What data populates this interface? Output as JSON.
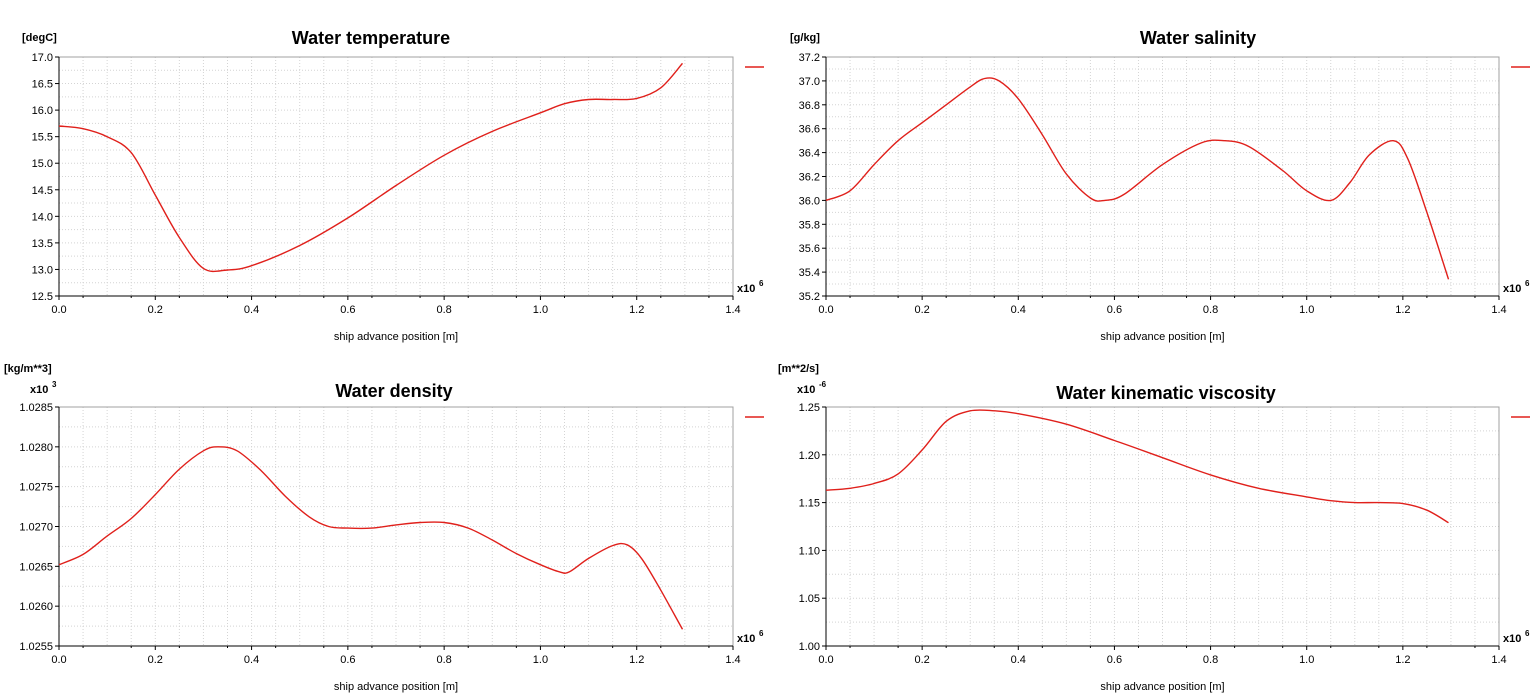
{
  "colors": {
    "series": "#e0201b",
    "grid": "#d4d4d4",
    "frame": "#a0a0a0"
  },
  "chart_data": [
    {
      "type": "line",
      "title": "Water temperature",
      "ylabel": "[degC]",
      "xlabel": "ship advance position [m]",
      "x_multiplier": "x10",
      "x_multiplier_exp": "6",
      "y_multiplier": "",
      "y_multiplier_exp": "",
      "xlim": [
        0,
        1.4
      ],
      "ylim": [
        12.5,
        17.0
      ],
      "xticks": [
        0.0,
        0.2,
        0.4,
        0.6,
        0.8,
        1.0,
        1.2,
        1.4
      ],
      "xtick_labels": [
        "0.0",
        "0.2",
        "0.4",
        "0.6",
        "0.8",
        "1.0",
        "1.2",
        "1.4"
      ],
      "yticks": [
        12.5,
        13.0,
        13.5,
        14.0,
        14.5,
        15.0,
        15.5,
        16.0,
        16.5,
        17.0
      ],
      "ytick_labels": [
        "12.5",
        "13.0",
        "13.5",
        "14.0",
        "14.5",
        "15.0",
        "15.5",
        "16.0",
        "16.5",
        "17.0"
      ],
      "legend": "top-right",
      "grid": true,
      "series": [
        {
          "x": [
            0.0,
            0.05,
            0.1,
            0.15,
            0.2,
            0.25,
            0.3,
            0.35,
            0.4,
            0.5,
            0.6,
            0.7,
            0.8,
            0.9,
            1.0,
            1.05,
            1.1,
            1.15,
            1.2,
            1.25,
            1.295
          ],
          "y": [
            15.7,
            15.65,
            15.5,
            15.2,
            14.4,
            13.6,
            13.02,
            12.99,
            13.07,
            13.45,
            13.97,
            14.58,
            15.15,
            15.6,
            15.95,
            16.12,
            16.2,
            16.2,
            16.22,
            16.42,
            16.88
          ]
        }
      ]
    },
    {
      "type": "line",
      "title": "Water salinity",
      "ylabel": "[g/kg]",
      "xlabel": "ship advance position [m]",
      "x_multiplier": "x10",
      "x_multiplier_exp": "6",
      "y_multiplier": "",
      "y_multiplier_exp": "",
      "xlim": [
        0,
        1.4
      ],
      "ylim": [
        35.2,
        37.2
      ],
      "xticks": [
        0.0,
        0.2,
        0.4,
        0.6,
        0.8,
        1.0,
        1.2,
        1.4
      ],
      "xtick_labels": [
        "0.0",
        "0.2",
        "0.4",
        "0.6",
        "0.8",
        "1.0",
        "1.2",
        "1.4"
      ],
      "yticks": [
        35.2,
        35.4,
        35.6,
        35.8,
        36.0,
        36.2,
        36.4,
        36.6,
        36.8,
        37.0,
        37.2
      ],
      "ytick_labels": [
        "35.2",
        "35.4",
        "35.6",
        "35.8",
        "36.0",
        "36.2",
        "36.4",
        "36.6",
        "36.8",
        "37.0",
        "37.2"
      ],
      "legend": "top-right",
      "grid": true,
      "series": [
        {
          "x": [
            0.0,
            0.05,
            0.1,
            0.15,
            0.2,
            0.25,
            0.3,
            0.33,
            0.36,
            0.4,
            0.45,
            0.5,
            0.55,
            0.58,
            0.62,
            0.7,
            0.78,
            0.83,
            0.88,
            0.95,
            1.0,
            1.05,
            1.09,
            1.13,
            1.18,
            1.21,
            1.25,
            1.295
          ],
          "y": [
            36.0,
            36.08,
            36.3,
            36.5,
            36.65,
            36.8,
            36.95,
            37.02,
            37.0,
            36.85,
            36.55,
            36.22,
            36.02,
            36.0,
            36.05,
            36.3,
            36.48,
            36.5,
            36.45,
            36.25,
            36.08,
            36.0,
            36.15,
            36.38,
            36.5,
            36.35,
            35.9,
            35.34
          ]
        }
      ]
    },
    {
      "type": "line",
      "title": "Water density",
      "ylabel": "[kg/m**3]",
      "xlabel": "ship advance position [m]",
      "x_multiplier": "x10",
      "x_multiplier_exp": "6",
      "y_multiplier": "x10",
      "y_multiplier_exp": "3",
      "xlim": [
        0,
        1.4
      ],
      "ylim": [
        1.0255,
        1.0285
      ],
      "xticks": [
        0.0,
        0.2,
        0.4,
        0.6,
        0.8,
        1.0,
        1.2,
        1.4
      ],
      "xtick_labels": [
        "0.0",
        "0.2",
        "0.4",
        "0.6",
        "0.8",
        "1.0",
        "1.2",
        "1.4"
      ],
      "yticks": [
        1.0255,
        1.026,
        1.0265,
        1.027,
        1.0275,
        1.028,
        1.0285
      ],
      "ytick_labels": [
        "1.0255",
        "1.0260",
        "1.0265",
        "1.0270",
        "1.0275",
        "1.0280",
        "1.0285"
      ],
      "legend": "top-right",
      "grid": true,
      "series": [
        {
          "x": [
            0.0,
            0.05,
            0.1,
            0.15,
            0.2,
            0.25,
            0.3,
            0.33,
            0.37,
            0.42,
            0.47,
            0.52,
            0.56,
            0.6,
            0.65,
            0.7,
            0.75,
            0.8,
            0.85,
            0.9,
            0.95,
            1.0,
            1.04,
            1.06,
            1.1,
            1.15,
            1.18,
            1.21,
            1.25,
            1.295
          ],
          "y": [
            1.02652,
            1.02665,
            1.02688,
            1.0271,
            1.0274,
            1.02772,
            1.02795,
            1.028,
            1.02795,
            1.0277,
            1.02738,
            1.02712,
            1.027,
            1.02698,
            1.02698,
            1.02702,
            1.02705,
            1.02705,
            1.02698,
            1.02683,
            1.02666,
            1.02652,
            1.02643,
            1.02643,
            1.0266,
            1.02676,
            1.02677,
            1.0266,
            1.0262,
            1.02571
          ]
        }
      ]
    },
    {
      "type": "line",
      "title": "Water kinematic viscosity",
      "ylabel": "[m**2/s]",
      "xlabel": "ship advance position [m]",
      "x_multiplier": "x10",
      "x_multiplier_exp": "6",
      "y_multiplier": "x10",
      "y_multiplier_exp": "-6",
      "xlim": [
        0,
        1.4
      ],
      "ylim": [
        1.0,
        1.25
      ],
      "xticks": [
        0.0,
        0.2,
        0.4,
        0.6,
        0.8,
        1.0,
        1.2,
        1.4
      ],
      "xtick_labels": [
        "0.0",
        "0.2",
        "0.4",
        "0.6",
        "0.8",
        "1.0",
        "1.2",
        "1.4"
      ],
      "yticks": [
        1.0,
        1.05,
        1.1,
        1.15,
        1.2,
        1.25
      ],
      "ytick_labels": [
        "1.00",
        "1.05",
        "1.10",
        "1.15",
        "1.20",
        "1.25"
      ],
      "legend": "top-right",
      "grid": true,
      "series": [
        {
          "x": [
            0.0,
            0.05,
            0.1,
            0.15,
            0.2,
            0.25,
            0.3,
            0.35,
            0.4,
            0.5,
            0.6,
            0.7,
            0.8,
            0.9,
            1.0,
            1.05,
            1.1,
            1.15,
            1.2,
            1.25,
            1.295
          ],
          "y": [
            1.163,
            1.165,
            1.17,
            1.18,
            1.205,
            1.235,
            1.246,
            1.246,
            1.243,
            1.232,
            1.215,
            1.197,
            1.179,
            1.165,
            1.156,
            1.152,
            1.15,
            1.15,
            1.149,
            1.142,
            1.129
          ]
        }
      ]
    }
  ]
}
